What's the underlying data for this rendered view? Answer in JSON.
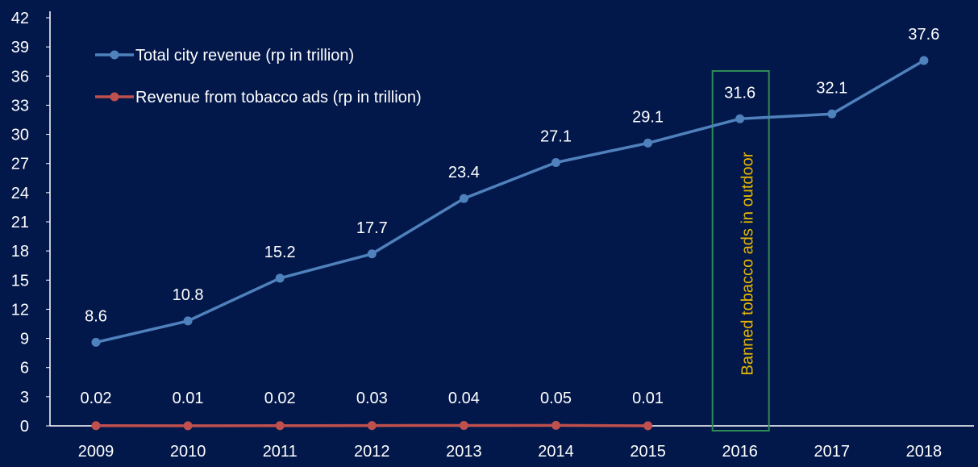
{
  "chart_data": {
    "type": "line",
    "categories": [
      "2009",
      "2010",
      "2011",
      "2012",
      "2013",
      "2014",
      "2015",
      "2016",
      "2017",
      "2018"
    ],
    "series": [
      {
        "name": "Total city revenue (rp in trillion)",
        "color": "#4f81bd",
        "values": [
          8.6,
          10.8,
          15.2,
          17.7,
          23.4,
          27.1,
          29.1,
          31.6,
          32.1,
          37.6
        ],
        "labels": [
          "8.6",
          "10.8",
          "15.2",
          "17.7",
          "23.4",
          "27.1",
          "29.1",
          "31.6",
          "32.1",
          "37.6"
        ]
      },
      {
        "name": "Revenue from tobacco ads (rp in trillion)",
        "color": "#c0504d",
        "values": [
          0.02,
          0.01,
          0.02,
          0.03,
          0.04,
          0.05,
          0.01,
          null,
          null,
          null
        ],
        "labels": [
          "0.02",
          "0.01",
          "0.02",
          "0.03",
          "0.04",
          "0.05",
          "0.01",
          null,
          null,
          null
        ]
      }
    ],
    "ylim": [
      0,
      42
    ],
    "yticks": [
      0,
      3,
      6,
      9,
      12,
      15,
      18,
      21,
      24,
      27,
      30,
      33,
      36,
      39,
      42
    ],
    "grid": false,
    "legend_position": "top-left",
    "annotation": {
      "category": "2016",
      "text": "Banned tobacco ads in outdoor",
      "text_color": "#e6b800",
      "box_color": "#2e8b57"
    },
    "colors": {
      "background": "#03184a",
      "axis": "#ffffff",
      "text": "#ffffff"
    }
  }
}
